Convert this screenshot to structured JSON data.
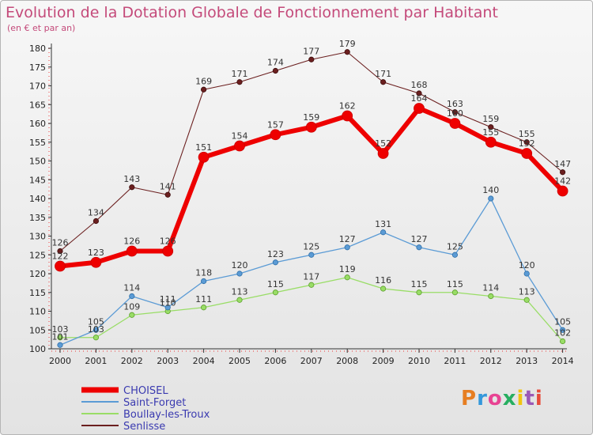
{
  "title": "Evolution de la Dotation Globale de Fonctionnement par Habitant",
  "subtitle": "(en € et par an)",
  "logo": {
    "text": "Proxiti",
    "colors": [
      "#e67e22",
      "#3498db",
      "#e84393",
      "#27ae60",
      "#f1c40f",
      "#9b59b6",
      "#e74c3c"
    ]
  },
  "chart_data": {
    "type": "line",
    "title": "Evolution de la Dotation Globale de Fonctionnement par Habitant",
    "subtitle": "(en € et par an)",
    "xlabel": "",
    "ylabel": "",
    "categories": [
      "2000",
      "2001",
      "2002",
      "2003",
      "2004",
      "2005",
      "2006",
      "2007",
      "2008",
      "2009",
      "2010",
      "2011",
      "2012",
      "2013",
      "2014"
    ],
    "ylim": [
      100,
      180
    ],
    "yticks": [
      100,
      105,
      110,
      115,
      120,
      125,
      130,
      135,
      140,
      145,
      150,
      155,
      160,
      165,
      170,
      175,
      180
    ],
    "grid": false,
    "legend_position": "bottom-left",
    "series": [
      {
        "name": "CHOISEL",
        "color": "#ee0000",
        "values": [
          122,
          123,
          126,
          126,
          151,
          154,
          157,
          159,
          162,
          152,
          164,
          160,
          155,
          152,
          142
        ]
      },
      {
        "name": "Saint-Forget",
        "color": "#5b9bd5",
        "values": [
          101,
          105,
          114,
          111,
          118,
          120,
          123,
          125,
          127,
          131,
          127,
          125,
          140,
          120,
          105
        ]
      },
      {
        "name": "Boullay-les-Troux",
        "color": "#99dd66",
        "values": [
          103,
          103,
          109,
          110,
          111,
          113,
          115,
          117,
          119,
          116,
          115,
          115,
          114,
          113,
          102
        ]
      },
      {
        "name": "Senlisse",
        "color": "#6b1f1f",
        "values": [
          126,
          134,
          143,
          141,
          169,
          171,
          174,
          177,
          179,
          171,
          168,
          163,
          159,
          155,
          147
        ]
      }
    ]
  }
}
